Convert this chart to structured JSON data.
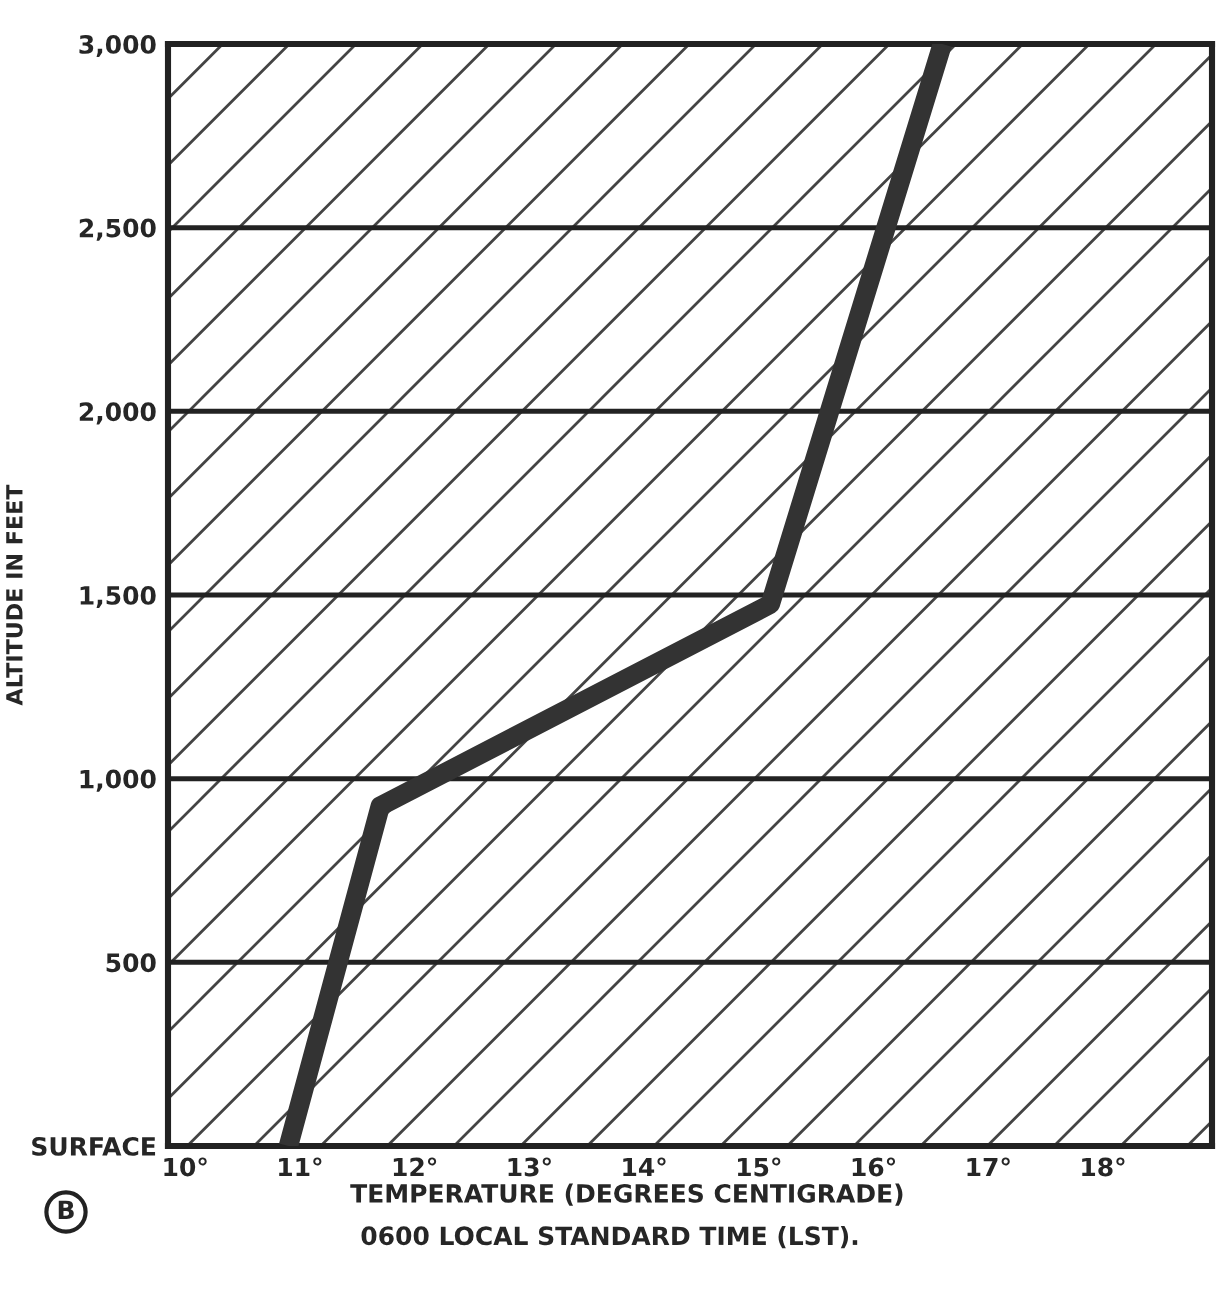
{
  "chart_data": {
    "type": "line",
    "xlabel": "TEMPERATURE (DEGREES CENTIGRADE)",
    "ylabel": "ALTITUDE IN FEET",
    "x": [
      10.9,
      11.7,
      15.1,
      16.6
    ],
    "series": [
      {
        "color": "#333333",
        "values": [
          0,
          925,
          1475,
          3000
        ]
      }
    ],
    "xlim": [
      9.85,
      18.95
    ],
    "xticks": [
      {
        "value": 10,
        "label": "10°"
      },
      {
        "value": 11,
        "label": "11°"
      },
      {
        "value": 12,
        "label": "12°"
      },
      {
        "value": 13,
        "label": "13°"
      },
      {
        "value": 14,
        "label": "14°"
      },
      {
        "value": 15,
        "label": "15°"
      },
      {
        "value": 16,
        "label": "16°"
      },
      {
        "value": 17,
        "label": "17°"
      },
      {
        "value": 18,
        "label": "18°"
      }
    ],
    "ylim": [
      0,
      3000
    ],
    "yticks": [
      {
        "value": 0,
        "label": "SURFACE"
      },
      {
        "value": 500,
        "label": "500"
      },
      {
        "value": 1000,
        "label": "1,000"
      },
      {
        "value": 1500,
        "label": "1,500"
      },
      {
        "value": 2000,
        "label": "2,000"
      },
      {
        "value": 2500,
        "label": "2,500"
      },
      {
        "value": 3000,
        "label": "3,000"
      }
    ],
    "grid": "y",
    "marker": "none",
    "line_style": "solid",
    "annotations": [
      "0600 LOCAL STANDARD TIME (LST).",
      "B"
    ]
  }
}
